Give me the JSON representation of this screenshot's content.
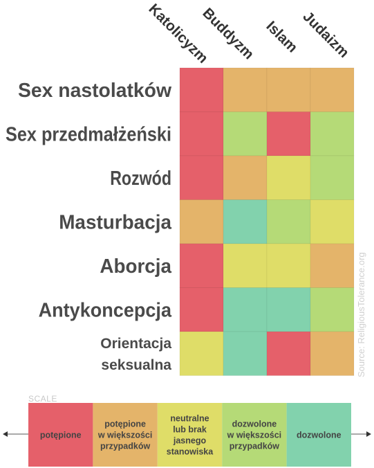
{
  "chart_data": {
    "type": "heatmap",
    "columns": [
      "Katolicyzm",
      "Buddyzm",
      "Islam",
      "Judaizm"
    ],
    "rows": [
      {
        "label": [
          "Sex nastolatków"
        ],
        "values": [
          1,
          2,
          2,
          2
        ]
      },
      {
        "label": [
          "Sex przedmałżeński"
        ],
        "values": [
          1,
          4,
          1,
          4
        ]
      },
      {
        "label": [
          "Rozwód"
        ],
        "values": [
          1,
          2,
          3,
          4
        ]
      },
      {
        "label": [
          "Masturbacja"
        ],
        "values": [
          2,
          5,
          4,
          3
        ]
      },
      {
        "label": [
          "Aborcja"
        ],
        "values": [
          1,
          3,
          3,
          2
        ]
      },
      {
        "label": [
          "Antykoncepcja"
        ],
        "values": [
          1,
          5,
          5,
          4
        ]
      },
      {
        "label": [
          "Orientacja",
          "seksualna"
        ],
        "values": [
          3,
          5,
          1,
          2
        ]
      }
    ],
    "source": "Source: ReligiousTolerance.org"
  },
  "scale": {
    "title": "SCALE",
    "levels": [
      {
        "value": 1,
        "lines": [
          "potępione"
        ],
        "color": "#e5606a"
      },
      {
        "value": 2,
        "lines": [
          "potępione",
          "w większości",
          "przypadków"
        ],
        "color": "#e4b46a"
      },
      {
        "value": 3,
        "lines": [
          "neutralne",
          "lub brak",
          "jasnego",
          "stanowiska"
        ],
        "color": "#dfdd68"
      },
      {
        "value": 4,
        "lines": [
          "dozwolone",
          "w większości",
          "przypadków"
        ],
        "color": "#b5da77"
      },
      {
        "value": 5,
        "lines": [
          "dozwolone"
        ],
        "color": "#82d2ad"
      }
    ]
  }
}
